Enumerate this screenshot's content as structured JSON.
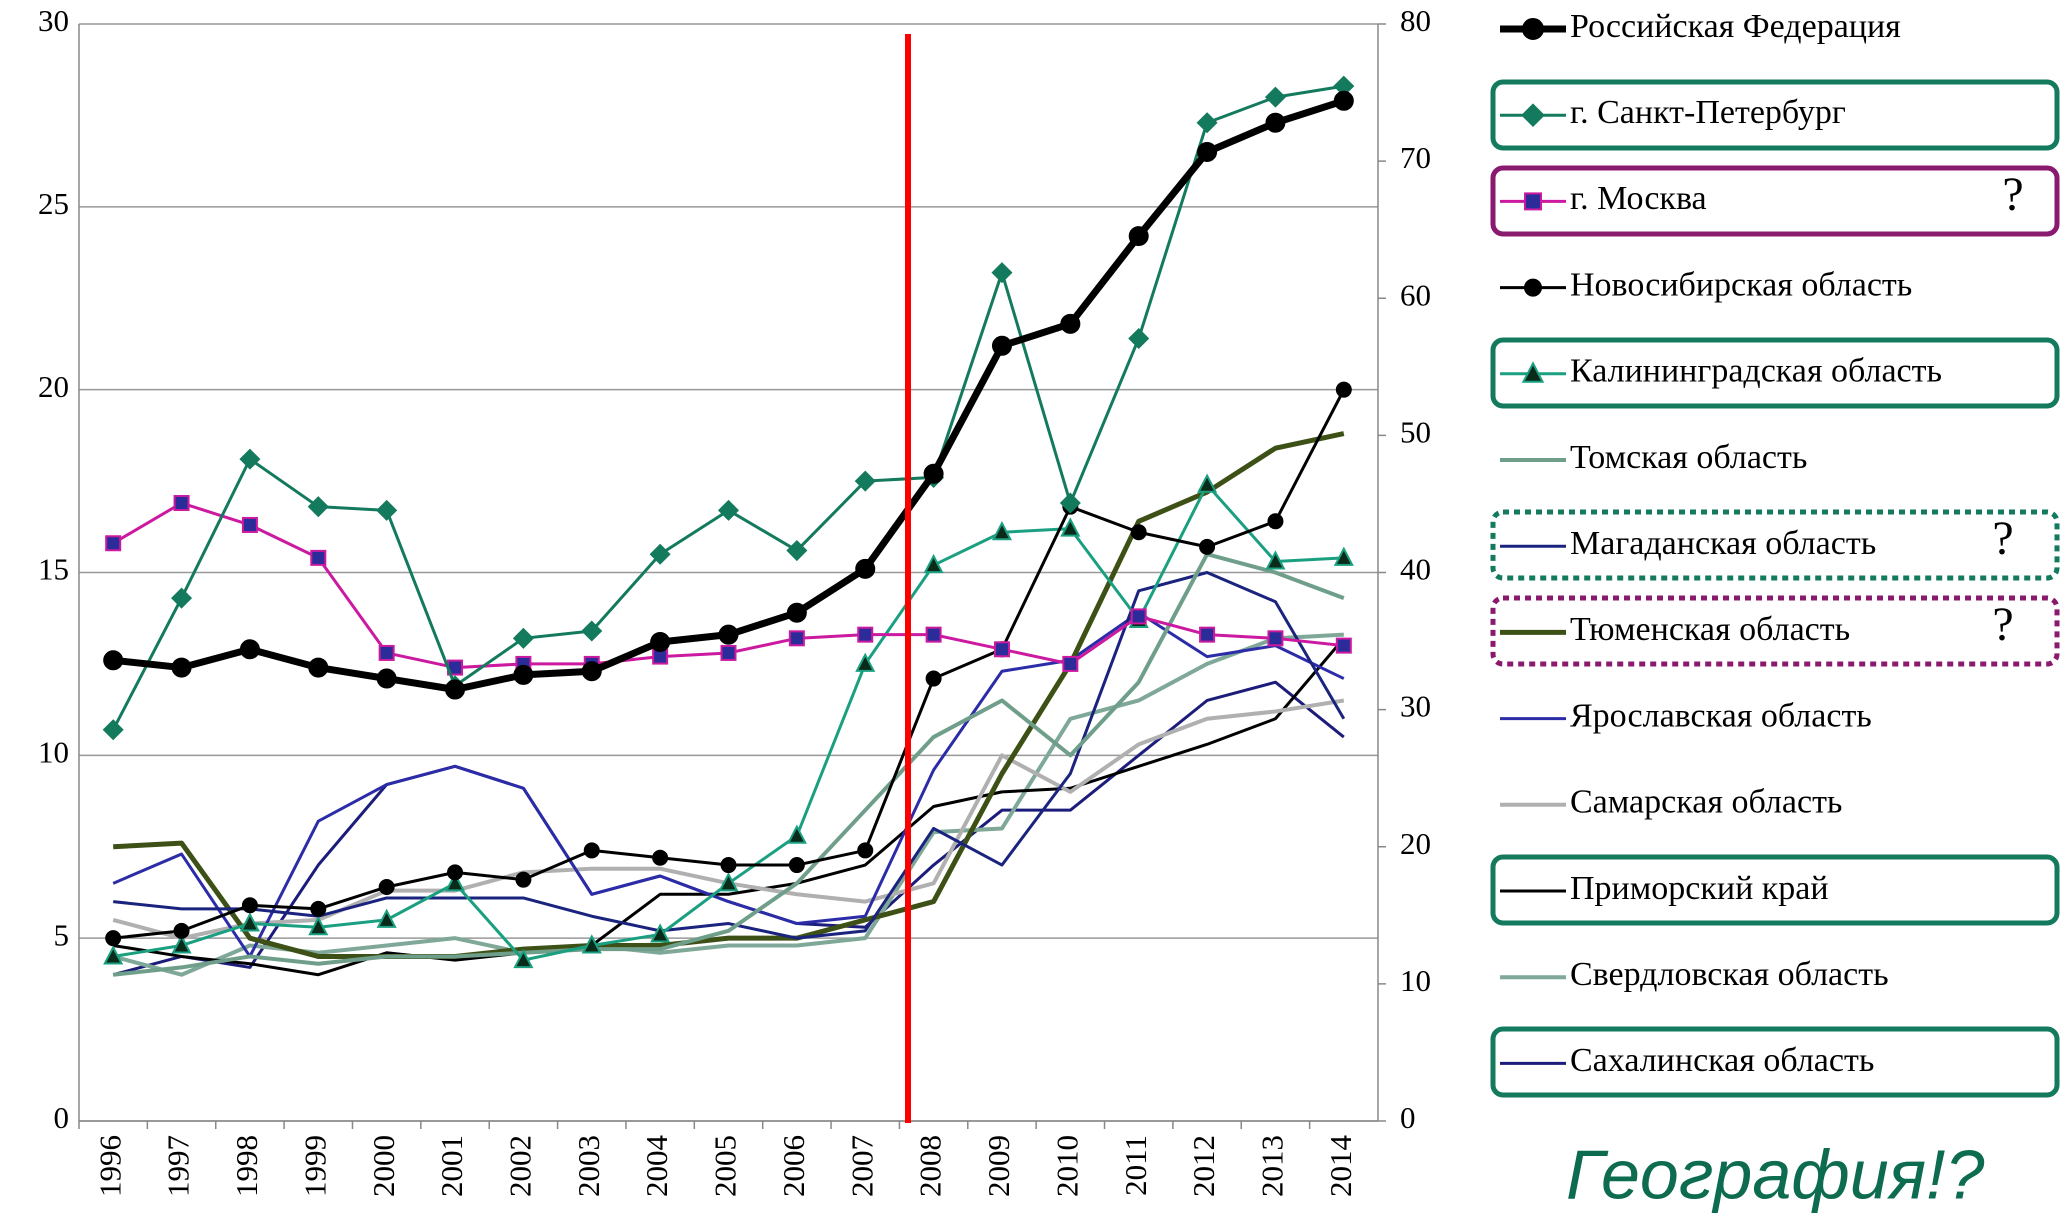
{
  "chart_data": {
    "type": "line",
    "categories": [
      "1996",
      "1997",
      "1998",
      "1999",
      "2000",
      "2001",
      "2002",
      "2003",
      "2004",
      "2005",
      "2006",
      "2007",
      "2008",
      "2009",
      "2010",
      "2011",
      "2012",
      "2013",
      "2014"
    ],
    "ylim": [
      0,
      30
    ],
    "yticks": [
      0,
      5,
      10,
      15,
      20,
      25,
      30
    ],
    "y2lim": [
      0,
      80
    ],
    "y2ticks": [
      0,
      10,
      20,
      30,
      40,
      50,
      60,
      70,
      80
    ],
    "grid": true,
    "legend": "right",
    "series": [
      {
        "name": "Российская Федерация",
        "color": "#000000",
        "marker": "circle",
        "line_width": 7,
        "values": [
          12.6,
          12.4,
          12.9,
          12.4,
          12.1,
          11.8,
          12.2,
          12.3,
          13.1,
          13.3,
          13.9,
          15.1,
          17.7,
          21.2,
          21.8,
          24.2,
          26.5,
          27.3,
          27.9
        ]
      },
      {
        "name": "г. Санкт-Петербург",
        "color": "#137a5e",
        "marker": "diamond",
        "line_width": 3,
        "values": [
          10.7,
          14.3,
          18.1,
          16.8,
          16.7,
          11.9,
          13.2,
          13.4,
          15.5,
          16.7,
          15.6,
          17.5,
          17.6,
          23.2,
          16.9,
          21.4,
          27.3,
          28.0,
          28.3
        ]
      },
      {
        "name": "г. Москва",
        "color": "#cc1aa0",
        "marker": "square",
        "marker_color": "#2b2b9a",
        "line_width": 3,
        "values": [
          15.8,
          16.9,
          16.3,
          15.4,
          12.8,
          12.4,
          12.5,
          12.5,
          12.7,
          12.8,
          13.2,
          13.3,
          13.3,
          12.9,
          12.5,
          13.8,
          13.3,
          13.2,
          13.0
        ]
      },
      {
        "name": "Новосибирская область",
        "color": "#000000",
        "marker": "circle",
        "line_width": 3,
        "values": [
          5.0,
          5.2,
          5.9,
          5.8,
          6.4,
          6.8,
          6.6,
          7.4,
          7.2,
          7.0,
          7.0,
          7.4,
          12.1,
          12.9,
          16.8,
          16.1,
          15.7,
          16.4,
          20.0
        ]
      },
      {
        "name": "Калининградская область",
        "color": "#1aa080",
        "marker": "triangle",
        "marker_color": "#0a2a1a",
        "line_width": 3,
        "values": [
          4.5,
          4.8,
          5.4,
          5.3,
          5.5,
          6.5,
          4.4,
          4.8,
          5.1,
          6.5,
          7.8,
          12.5,
          15.2,
          16.1,
          16.2,
          13.7,
          17.4,
          15.3,
          15.4
        ]
      },
      {
        "name": "Томская область",
        "color": "#6f9f8a",
        "line_width": 4,
        "values": [
          4.0,
          4.2,
          4.5,
          4.3,
          4.5,
          4.5,
          4.6,
          4.7,
          4.7,
          5.2,
          6.5,
          8.5,
          10.5,
          11.5,
          10.0,
          12.0,
          15.5,
          15.0,
          14.3
        ]
      },
      {
        "name": "Магаданская область",
        "color": "#1a237e",
        "line_width": 3,
        "values": [
          6.0,
          5.8,
          5.8,
          5.6,
          6.1,
          6.1,
          6.1,
          5.6,
          5.2,
          5.4,
          5.0,
          5.2,
          8.0,
          7.0,
          9.5,
          14.5,
          15.0,
          14.2,
          11.0
        ]
      },
      {
        "name": "Тюменская область",
        "color": "#3d5016",
        "line_width": 5,
        "values": [
          7.5,
          7.6,
          5.0,
          4.5,
          4.5,
          4.5,
          4.7,
          4.8,
          4.8,
          5.0,
          5.0,
          5.5,
          6.0,
          9.5,
          12.5,
          16.4,
          17.2,
          18.4,
          18.8
        ]
      },
      {
        "name": "Ярославская область",
        "color": "#2c2ca8",
        "line_width": 3,
        "values": [
          6.5,
          7.3,
          4.5,
          8.2,
          9.2,
          9.7,
          9.1,
          6.2,
          6.7,
          6.0,
          5.4,
          5.6,
          9.6,
          12.3,
          12.6,
          13.9,
          12.7,
          13.0,
          12.1
        ]
      },
      {
        "name": "Самарская область",
        "color": "#b0b0b0",
        "line_width": 4,
        "values": [
          5.5,
          5.0,
          5.4,
          5.5,
          6.3,
          6.3,
          6.8,
          6.9,
          6.9,
          6.5,
          6.2,
          6.0,
          6.5,
          10.0,
          9.0,
          10.3,
          11.0,
          11.2,
          11.5
        ]
      },
      {
        "name": "Приморский край",
        "color": "#000000",
        "line_width": 3,
        "values": [
          4.8,
          4.5,
          4.3,
          4.0,
          4.6,
          4.4,
          4.6,
          4.8,
          6.2,
          6.2,
          6.5,
          7.0,
          8.6,
          9.0,
          9.1,
          9.7,
          10.3,
          11.0,
          13.2
        ]
      },
      {
        "name": "Свердловская область",
        "color": "#7fa898",
        "line_width": 4,
        "values": [
          4.5,
          4.0,
          4.8,
          4.6,
          4.8,
          5.0,
          4.6,
          4.8,
          4.6,
          4.8,
          4.8,
          5.0,
          7.9,
          8.0,
          11.0,
          11.5,
          12.5,
          13.2,
          13.3
        ]
      },
      {
        "name": "Сахалинская область",
        "color": "#1c1c7a",
        "line_width": 3,
        "values": [
          4.0,
          4.5,
          4.2,
          7.0,
          9.2,
          9.7,
          9.1,
          6.2,
          6.7,
          6.0,
          5.4,
          5.3,
          7.0,
          8.5,
          8.5,
          10.0,
          11.5,
          12.0,
          10.5
        ]
      }
    ],
    "annotations": [
      "?",
      "?",
      "?",
      "География!?"
    ]
  }
}
